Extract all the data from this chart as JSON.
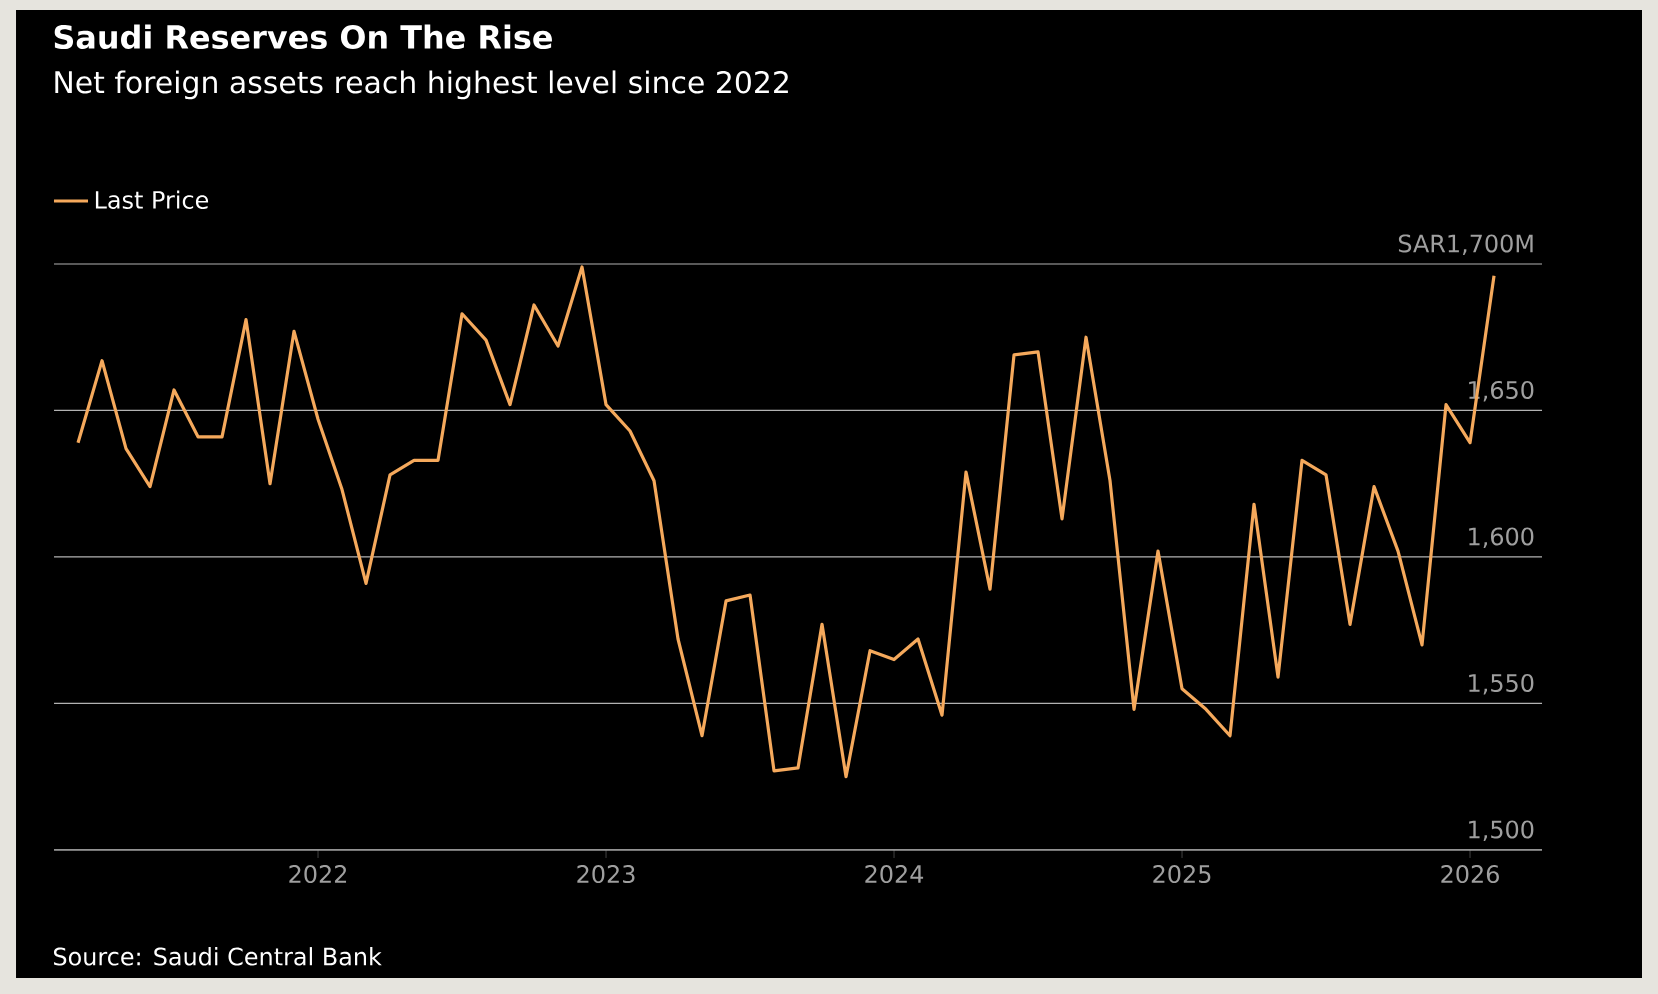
{
  "chart_data": {
    "type": "line",
    "title": "Saudi Reserves On The Rise",
    "subtitle": "Net foreign assets reach highest level since 2022",
    "x": [
      "2021-03",
      "2021-04",
      "2021-05",
      "2021-06",
      "2021-07",
      "2021-08",
      "2021-09",
      "2021-10",
      "2021-11",
      "2021-12",
      "2022-01",
      "2022-02",
      "2022-03",
      "2022-04",
      "2022-05",
      "2022-06",
      "2022-07",
      "2022-08",
      "2022-09",
      "2022-10",
      "2022-11",
      "2022-12",
      "2023-01",
      "2023-02",
      "2023-03",
      "2023-04",
      "2023-05",
      "2023-06",
      "2023-07",
      "2023-08",
      "2023-09",
      "2023-10",
      "2023-11",
      "2023-12",
      "2024-01",
      "2024-02",
      "2024-03",
      "2024-04",
      "2024-05",
      "2024-06",
      "2024-07",
      "2024-08",
      "2024-09",
      "2024-10",
      "2024-11",
      "2024-12",
      "2025-01",
      "2025-02",
      "2025-03",
      "2025-04",
      "2025-05",
      "2025-06",
      "2025-07",
      "2025-08",
      "2025-09",
      "2025-10",
      "2025-11",
      "2025-12",
      "2026-01",
      "2026-02"
    ],
    "series": [
      {
        "name": "Last Price",
        "color": "#f5a95c",
        "values": [
          1639,
          1667,
          1637,
          1624,
          1657,
          1641,
          1641,
          1681,
          1625,
          1677,
          1647,
          1623,
          1591,
          1628,
          1633,
          1633,
          1683,
          1674,
          1652,
          1686,
          1672,
          1699,
          1652,
          1643,
          1626,
          1572,
          1539,
          1585,
          1587,
          1527,
          1528,
          1577,
          1525,
          1568,
          1565,
          1572,
          1546,
          1629,
          1589,
          1669,
          1670,
          1613,
          1675,
          1626,
          1548,
          1602,
          1555,
          1548,
          1539,
          1618,
          1559,
          1633,
          1628,
          1577,
          1624,
          1602,
          1570,
          1652,
          1639,
          1696
        ]
      }
    ],
    "xlim": [
      "2021-02",
      "2026-04"
    ],
    "xticks": [
      "2022",
      "2023",
      "2024",
      "2025",
      "2026"
    ],
    "ylim": [
      1500,
      1700
    ],
    "yticks": [
      {
        "value": 1500,
        "label": "1,500"
      },
      {
        "value": 1550,
        "label": "1,550"
      },
      {
        "value": 1600,
        "label": "1,600"
      },
      {
        "value": 1650,
        "label": "1,650"
      },
      {
        "value": 1700,
        "label": "SAR1,700M"
      }
    ],
    "grid": "y",
    "legend": "top left",
    "marker": "none",
    "line_style": "solid",
    "annotations": [
      "Source: Saudi Central Bank"
    ]
  }
}
